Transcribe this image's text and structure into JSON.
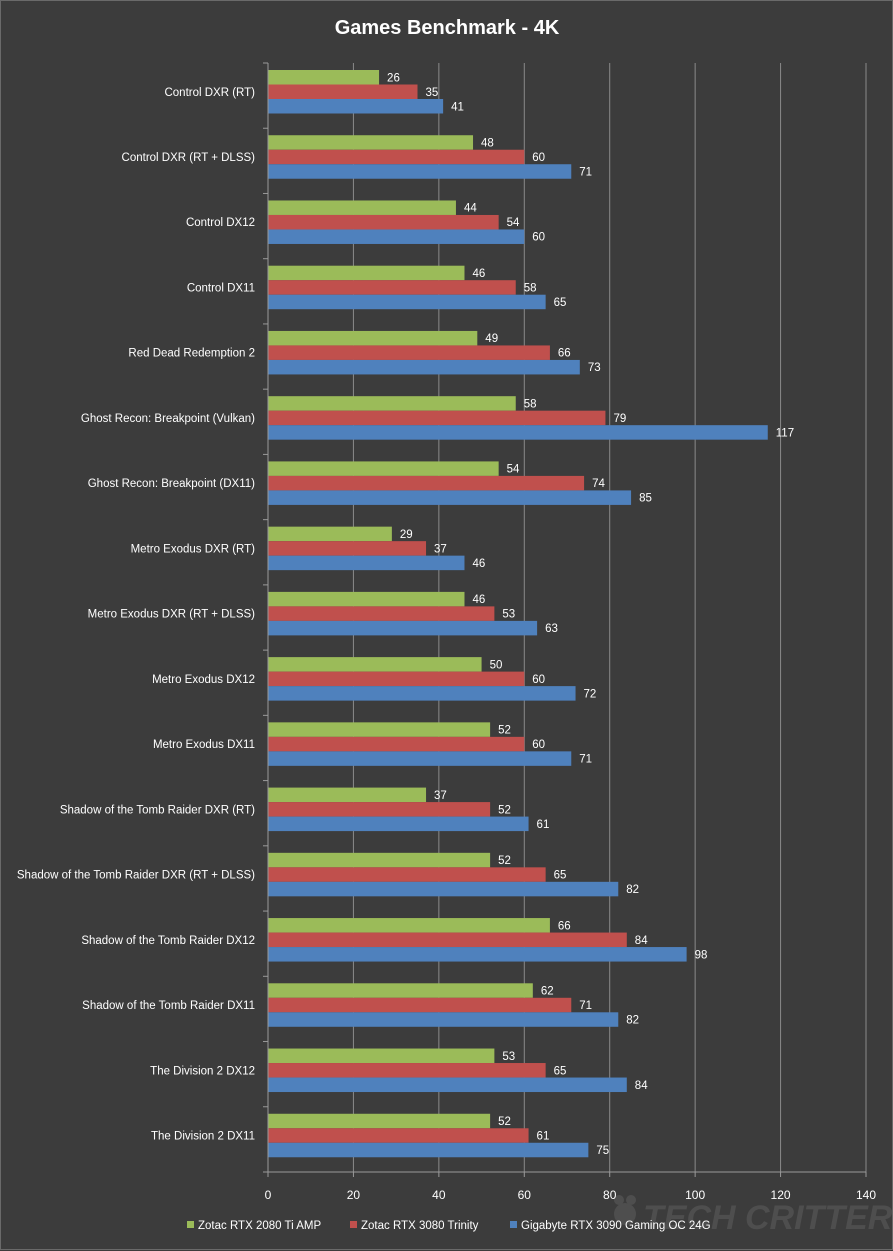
{
  "chart_data": {
    "type": "bar",
    "orientation": "horizontal",
    "title": "Games Benchmark - 4K",
    "xlabel": "",
    "ylabel": "",
    "xlim": [
      0,
      140
    ],
    "x_ticks": [
      0,
      20,
      40,
      60,
      80,
      100,
      120,
      140
    ],
    "grid": true,
    "legend_position": "bottom",
    "categories": [
      "Control DXR (RT)",
      "Control DXR (RT + DLSS)",
      "Control DX12",
      "Control DX11",
      "Red Dead Redemption  2",
      "Ghost Recon: Breakpoint (Vulkan)",
      "Ghost Recon: Breakpoint (DX11)",
      "Metro Exodus  DXR (RT)",
      "Metro Exodus  DXR (RT + DLSS)",
      "Metro Exodus  DX12",
      "Metro Exodus  DX11",
      "Shadow of the Tomb  Raider DXR (RT)",
      "Shadow of the Tomb  Raider DXR (RT + DLSS)",
      "Shadow of the Tomb  Raider DX12",
      "Shadow of the Tomb  Raider DX11",
      "The Division  2 DX12",
      "The Division  2 DX11"
    ],
    "series": [
      {
        "name": "Zotac RTX 2080 Ti AMP",
        "color": "#9bbb59",
        "values": [
          26,
          48,
          44,
          46,
          49,
          58,
          54,
          29,
          46,
          50,
          52,
          37,
          52,
          66,
          62,
          53,
          52
        ]
      },
      {
        "name": "Zotac RTX 3080 Trinity",
        "color": "#c0504d",
        "values": [
          35,
          60,
          54,
          58,
          66,
          79,
          74,
          37,
          53,
          60,
          60,
          52,
          65,
          84,
          71,
          65,
          61
        ]
      },
      {
        "name": "Gigabyte RTX  3090 Gaming  OC 24G",
        "color": "#4f81bd",
        "values": [
          41,
          71,
          60,
          65,
          73,
          117,
          85,
          46,
          63,
          72,
          71,
          61,
          82,
          98,
          82,
          84,
          75
        ]
      }
    ]
  },
  "watermark": {
    "text": "TECH CRITTER",
    "icon": "critter-logo-icon"
  }
}
